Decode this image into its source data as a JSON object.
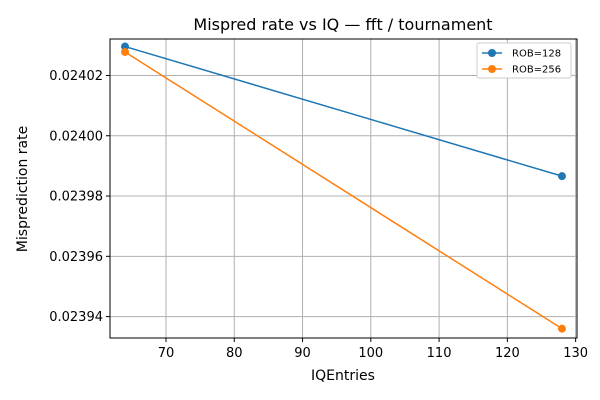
{
  "chart_data": {
    "type": "line",
    "title": "Mispred rate vs IQ — fft / tournament",
    "xlabel": "IQEntries",
    "ylabel": "Misprediction rate",
    "xlim": [
      61.8,
      130.2
    ],
    "ylim": [
      0.0239329,
      0.0240321
    ],
    "x_ticks": [
      70,
      80,
      90,
      100,
      110,
      120,
      130
    ],
    "y_ticks": [
      0.02394,
      0.02396,
      0.02398,
      0.024,
      0.02402
    ],
    "x_tick_labels": [
      "70",
      "80",
      "90",
      "100",
      "110",
      "120",
      "130"
    ],
    "y_tick_labels": [
      "0.02394",
      "0.02396",
      "0.02398",
      "0.02400",
      "0.02402"
    ],
    "grid": true,
    "legend_position": "top-right",
    "series": [
      {
        "name": "ROB=128",
        "color": "#1f77b4",
        "x": [
          64,
          128
        ],
        "y": [
          0.0240296,
          0.0239866
        ]
      },
      {
        "name": "ROB=256",
        "color": "#ff7f0e",
        "x": [
          64,
          128
        ],
        "y": [
          0.0240278,
          0.023936
        ]
      }
    ]
  }
}
